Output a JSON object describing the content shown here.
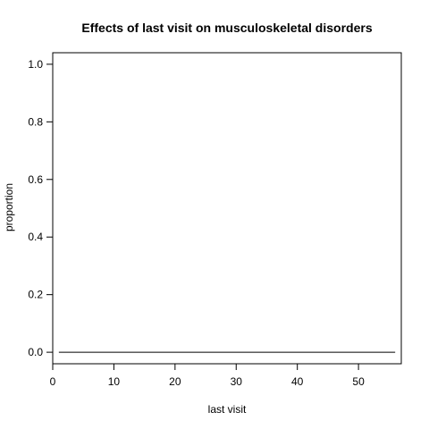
{
  "chart_data": {
    "type": "line",
    "title": "Effects of last visit on musculoskeletal disorders",
    "xlabel": "last visit",
    "ylabel": "proportion",
    "xlim": [
      0,
      57
    ],
    "ylim": [
      -0.04,
      1.04
    ],
    "x_ticks": [
      0,
      10,
      20,
      30,
      40,
      50
    ],
    "y_ticks": [
      0.0,
      0.2,
      0.4,
      0.6,
      0.8,
      1.0
    ],
    "x_tick_labels": [
      "0",
      "10",
      "20",
      "30",
      "40",
      "50"
    ],
    "y_tick_labels": [
      "0.0",
      "0.2",
      "0.4",
      "0.6",
      "0.8",
      "1.0"
    ],
    "grid": false,
    "series": [
      {
        "x": [
          1,
          56
        ],
        "y": [
          0,
          0
        ],
        "color": "#000000"
      }
    ]
  }
}
